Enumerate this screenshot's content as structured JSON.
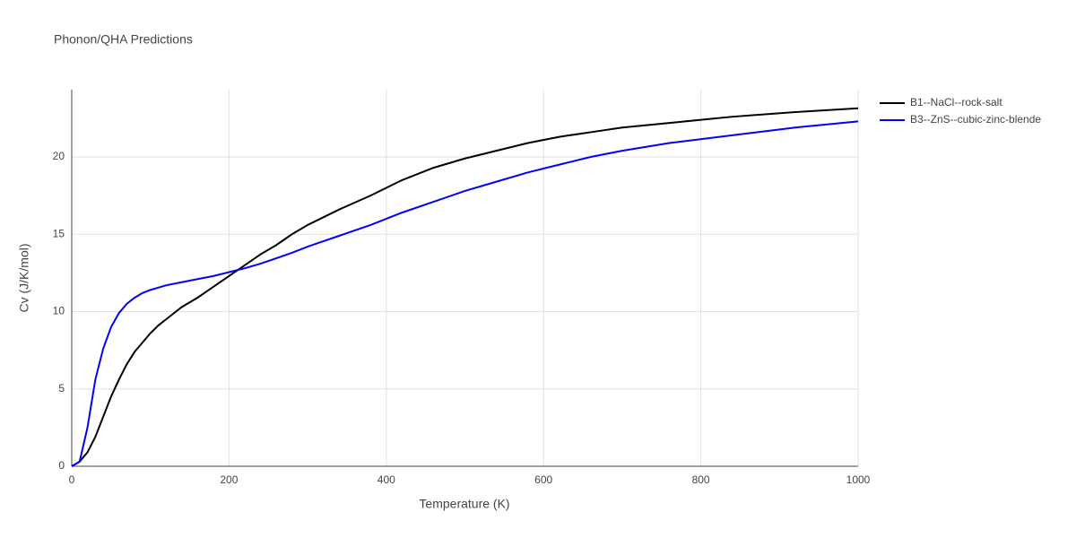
{
  "chart_data": {
    "type": "line",
    "title": "Phonon/QHA Predictions",
    "x_label": "Temperature (K)",
    "y_label": "Cv (J/K/mol)",
    "x": [
      0,
      10,
      20,
      30,
      40,
      50,
      60,
      70,
      80,
      90,
      100,
      110,
      120,
      140,
      160,
      180,
      200,
      220,
      240,
      260,
      280,
      300,
      340,
      380,
      420,
      460,
      500,
      540,
      580,
      620,
      660,
      700,
      760,
      840,
      920,
      1000
    ],
    "series": [
      {
        "name": "B1--NaCl--rock-salt",
        "color": "#000000",
        "values": [
          0,
          0.3,
          0.9,
          1.9,
          3.2,
          4.5,
          5.6,
          6.6,
          7.4,
          8.0,
          8.6,
          9.1,
          9.5,
          10.3,
          10.9,
          11.6,
          12.3,
          13.0,
          13.7,
          14.3,
          15.0,
          15.6,
          16.6,
          17.5,
          18.5,
          19.3,
          19.9,
          20.4,
          20.9,
          21.3,
          21.6,
          21.9,
          22.2,
          22.6,
          22.9,
          23.15
        ]
      },
      {
        "name": "B3--ZnS--cubic-zinc-blende",
        "color": "#0000ff",
        "values": [
          0,
          0.3,
          2.5,
          5.6,
          7.6,
          9.0,
          9.9,
          10.5,
          10.9,
          11.2,
          11.4,
          11.55,
          11.7,
          11.9,
          12.1,
          12.3,
          12.55,
          12.8,
          13.1,
          13.45,
          13.8,
          14.2,
          14.9,
          15.6,
          16.4,
          17.1,
          17.8,
          18.4,
          19.0,
          19.5,
          20.0,
          20.4,
          20.9,
          21.4,
          21.9,
          22.3
        ]
      }
    ],
    "xlim": [
      0,
      1000
    ],
    "xticks": [
      0,
      200,
      400,
      600,
      800,
      1000
    ],
    "ylim": [
      0,
      24.35
    ],
    "yticks": [
      0,
      5,
      10,
      15,
      20
    ],
    "grid": true,
    "legend": "right"
  }
}
